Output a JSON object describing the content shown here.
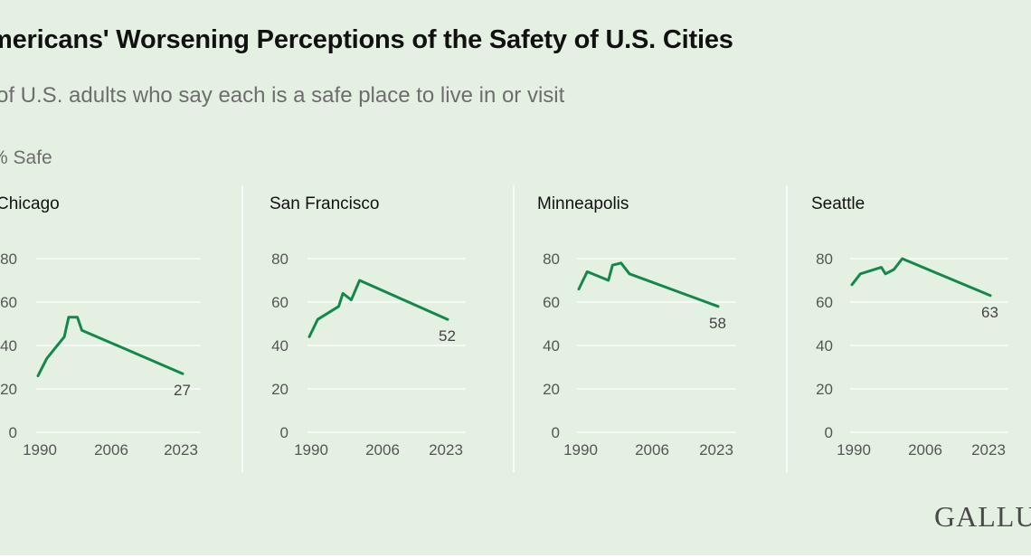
{
  "title": "mericans' Worsening Perceptions of the Safety of U.S. Cities",
  "subtitle": "of U.S. adults who say each is a safe place to live in or visit",
  "ylabel": "% Safe",
  "logo": "GALLU",
  "colors": {
    "line": "#14884a",
    "background": "#e4f1e2",
    "grid": "#ffffff",
    "divider": "#ffffff"
  },
  "chart_data": [
    {
      "type": "line",
      "title": "Chicago",
      "x": [
        1990,
        1992,
        1996,
        1997,
        1999,
        2000,
        2023
      ],
      "y": [
        26,
        34,
        44,
        53,
        53,
        47,
        27
      ],
      "end_label": "27",
      "xticks": [
        "1990",
        "2006",
        "2023"
      ],
      "yticks": [
        "80",
        "60",
        "40",
        "20",
        "0"
      ],
      "xlim": [
        1990,
        2023
      ],
      "ylim": [
        0,
        80
      ],
      "grid": true
    },
    {
      "type": "line",
      "title": "San Francisco",
      "x": [
        1990,
        1992,
        1997,
        1998,
        2000,
        2002,
        2023
      ],
      "y": [
        44,
        52,
        58,
        64,
        61,
        70,
        52
      ],
      "end_label": "52",
      "xticks": [
        "1990",
        "2006",
        "2023"
      ],
      "yticks": [
        "80",
        "60",
        "40",
        "20",
        "0"
      ],
      "xlim": [
        1990,
        2023
      ],
      "ylim": [
        0,
        80
      ],
      "grid": true
    },
    {
      "type": "line",
      "title": "Minneapolis",
      "x": [
        1990,
        1992,
        1997,
        1998,
        2000,
        2002,
        2023
      ],
      "y": [
        66,
        74,
        70,
        77,
        78,
        73,
        58
      ],
      "end_label": "58",
      "xticks": [
        "1990",
        "2006",
        "2023"
      ],
      "yticks": [
        "80",
        "60",
        "40",
        "20",
        "0"
      ],
      "xlim": [
        1990,
        2023
      ],
      "ylim": [
        0,
        80
      ],
      "grid": true
    },
    {
      "type": "line",
      "title": "Seattle",
      "x": [
        1990,
        1992,
        1997,
        1998,
        2000,
        2002,
        2023
      ],
      "y": [
        68,
        73,
        76,
        73,
        75,
        80,
        63
      ],
      "end_label": "63",
      "xticks": [
        "1990",
        "2006",
        "2023"
      ],
      "yticks": [
        "80",
        "60",
        "40",
        "20",
        "0"
      ],
      "xlim": [
        1990,
        2023
      ],
      "ylim": [
        0,
        80
      ],
      "grid": true
    }
  ]
}
